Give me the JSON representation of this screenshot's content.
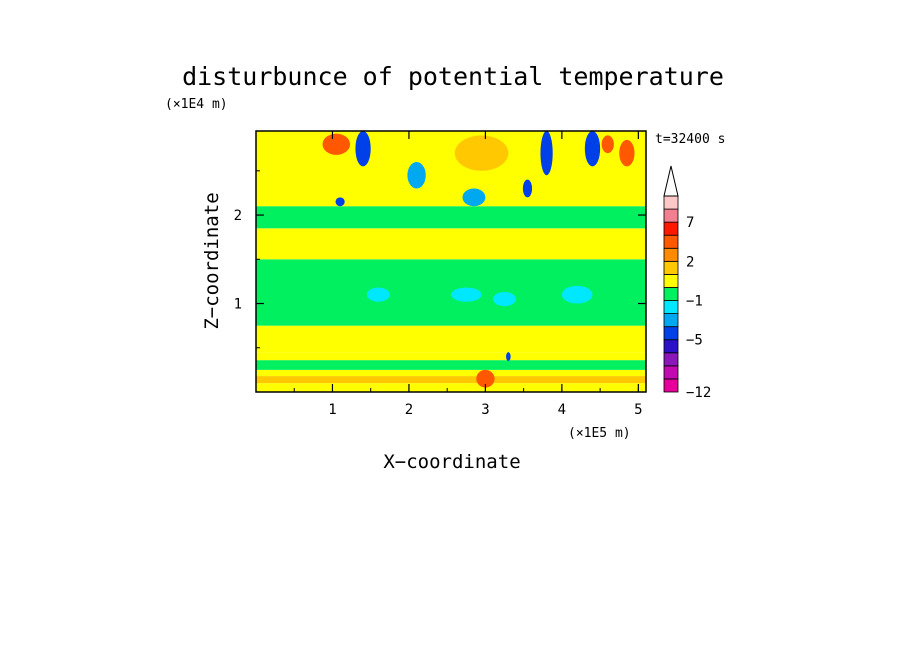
{
  "chart_data": {
    "type": "heatmap",
    "title": "disturbunce of potential temperature",
    "xlabel": "X−coordinate",
    "ylabel": "Z−coordinate",
    "x_unit": "(×1E5 m)",
    "y_unit": "(×1E4 m)",
    "annotation": "t=32400 s",
    "xlim": [
      0,
      5.1
    ],
    "ylim": [
      0,
      2.95
    ],
    "xticks": [
      "1",
      "2",
      "3",
      "4",
      "5"
    ],
    "yticks": [
      "1",
      "2"
    ],
    "colorbar": {
      "labels": [
        "−12",
        "−5",
        "−1",
        "2",
        "7"
      ],
      "levels": [
        -12,
        -10,
        -8,
        -6,
        -5,
        -3,
        -2,
        -1,
        0,
        1,
        2,
        3,
        5,
        7,
        9,
        11
      ],
      "colors": [
        "#e8009a",
        "#c20ab0",
        "#8a18b8",
        "#2a10c8",
        "#0040e8",
        "#00a8f0",
        "#00e8ff",
        "#00f060",
        "#ffff00",
        "#ffc800",
        "#ff8c00",
        "#ff5800",
        "#ff1800",
        "#f08090",
        "#ffc8c8"
      ],
      "extend": "max"
    },
    "bands": [
      {
        "z0": 0.0,
        "z1": 0.1,
        "value": 0.5
      },
      {
        "z0": 0.1,
        "z1": 0.18,
        "value": 1.5
      },
      {
        "z0": 0.18,
        "z1": 0.25,
        "value": 0.5
      },
      {
        "z0": 0.25,
        "z1": 0.36,
        "value": -0.5
      },
      {
        "z0": 0.36,
        "z1": 0.45,
        "value": 0.5
      },
      {
        "z0": 0.45,
        "z1": 0.75,
        "value": 0.5
      },
      {
        "z0": 0.75,
        "z1": 1.5,
        "value": -0.5
      },
      {
        "z0": 1.5,
        "z1": 1.85,
        "value": 0.5
      },
      {
        "z0": 1.85,
        "z1": 2.1,
        "value": -0.5
      },
      {
        "z0": 2.1,
        "z1": 2.95,
        "value": 0.5
      }
    ],
    "features": [
      {
        "kind": "ellipse",
        "x": 1.05,
        "z": 2.8,
        "rx": 0.18,
        "rz": 0.12,
        "value": 3.5
      },
      {
        "kind": "ellipse",
        "x": 0.5,
        "z": 2.55,
        "rx": 0.5,
        "rz": 0.2,
        "value": 0.5
      },
      {
        "kind": "ellipse",
        "x": 1.4,
        "z": 2.75,
        "rx": 0.1,
        "rz": 0.2,
        "value": -4.5
      },
      {
        "kind": "ellipse",
        "x": 1.1,
        "z": 2.15,
        "rx": 0.06,
        "rz": 0.05,
        "value": -4.5
      },
      {
        "kind": "ellipse",
        "x": 2.95,
        "z": 2.7,
        "rx": 0.35,
        "rz": 0.2,
        "value": 1.5
      },
      {
        "kind": "ellipse",
        "x": 2.1,
        "z": 2.45,
        "rx": 0.12,
        "rz": 0.15,
        "value": -2.5
      },
      {
        "kind": "ellipse",
        "x": 2.85,
        "z": 2.2,
        "rx": 0.15,
        "rz": 0.1,
        "value": -2.5
      },
      {
        "kind": "ellipse",
        "x": 3.8,
        "z": 2.7,
        "rx": 0.08,
        "rz": 0.25,
        "value": -4.5
      },
      {
        "kind": "ellipse",
        "x": 3.55,
        "z": 2.3,
        "rx": 0.06,
        "rz": 0.1,
        "value": -4.5
      },
      {
        "kind": "ellipse",
        "x": 4.4,
        "z": 2.75,
        "rx": 0.1,
        "rz": 0.2,
        "value": -4.5
      },
      {
        "kind": "ellipse",
        "x": 4.6,
        "z": 2.8,
        "rx": 0.08,
        "rz": 0.1,
        "value": 3.5
      },
      {
        "kind": "ellipse",
        "x": 4.85,
        "z": 2.7,
        "rx": 0.1,
        "rz": 0.15,
        "value": 3.5
      },
      {
        "kind": "ellipse",
        "x": 1.6,
        "z": 1.1,
        "rx": 0.15,
        "rz": 0.08,
        "value": -1.5
      },
      {
        "kind": "ellipse",
        "x": 4.2,
        "z": 1.1,
        "rx": 0.2,
        "rz": 0.1,
        "value": -1.5
      },
      {
        "kind": "ellipse",
        "x": 2.75,
        "z": 1.1,
        "rx": 0.2,
        "rz": 0.08,
        "value": -1.5
      },
      {
        "kind": "ellipse",
        "x": 3.25,
        "z": 1.05,
        "rx": 0.15,
        "rz": 0.08,
        "value": -1.5
      },
      {
        "kind": "ellipse",
        "x": 3.0,
        "z": 0.15,
        "rx": 0.12,
        "rz": 0.1,
        "value": 3.5
      },
      {
        "kind": "ellipse",
        "x": 3.3,
        "z": 0.4,
        "rx": 0.03,
        "rz": 0.05,
        "value": -4.5
      }
    ]
  }
}
